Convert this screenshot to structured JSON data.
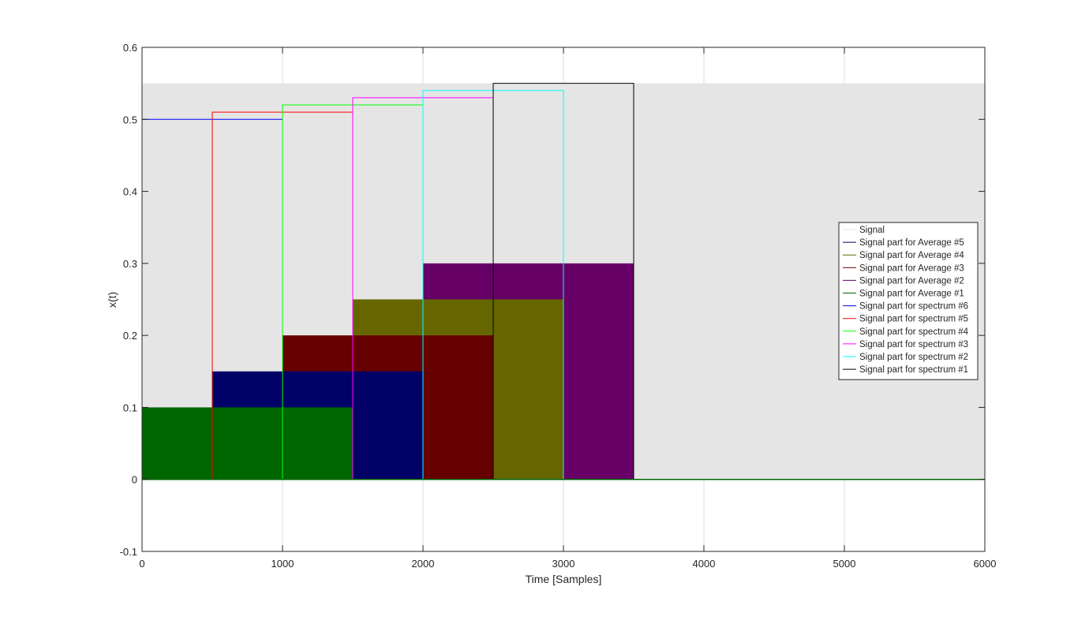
{
  "chart_data": {
    "type": "area",
    "title": "",
    "xlabel": "Time [Samples]",
    "ylabel": "x(t)",
    "xlim": [
      0,
      6000
    ],
    "ylim": [
      -0.1,
      0.6
    ],
    "grid": true,
    "x_ticks": [
      0,
      1000,
      2000,
      3000,
      4000,
      5000,
      6000
    ],
    "x_tick_labels": [
      "0",
      "1000",
      "2000",
      "3000",
      "4000",
      "5000",
      "6000"
    ],
    "y_ticks": [
      -0.1,
      0,
      0.1,
      0.2,
      0.3,
      0.4,
      0.5,
      0.6
    ],
    "y_tick_labels": [
      "-0.1",
      "0",
      "0.1",
      "0.2",
      "0.3",
      "0.4",
      "0.5",
      "0.6"
    ],
    "legend_position": "right",
    "signal": {
      "name": "Signal",
      "color": "#e5e5e5",
      "x": [
        0,
        6000
      ],
      "y": [
        0.55,
        0.55
      ]
    },
    "average_blocks": [
      {
        "name": "Signal part for Average #5",
        "color": "#000066",
        "x_range": [
          500,
          2000
        ],
        "height": 0.15
      },
      {
        "name": "Signal part for Average #4",
        "color": "#666600",
        "x_range": [
          1500,
          3000
        ],
        "height": 0.25
      },
      {
        "name": "Signal part for Average #3",
        "color": "#660000",
        "x_range": [
          1000,
          2500
        ],
        "height": 0.2
      },
      {
        "name": "Signal part for Average #2",
        "color": "#660066",
        "x_range": [
          2000,
          3500
        ],
        "height": 0.3
      },
      {
        "name": "Signal part for Average #1",
        "color": "#006600",
        "x_range": [
          0,
          1500
        ],
        "height": 0.1
      }
    ],
    "spectrum_windows": [
      {
        "name": "Signal part for spectrum #6",
        "color": "#0000ff",
        "x_range": [
          0,
          1000
        ],
        "height": 0.5
      },
      {
        "name": "Signal part for spectrum #5",
        "color": "#ff0000",
        "x_range": [
          500,
          1500
        ],
        "height": 0.51
      },
      {
        "name": "Signal part for spectrum #4",
        "color": "#00ff00",
        "x_range": [
          1000,
          2000
        ],
        "height": 0.52
      },
      {
        "name": "Signal part for spectrum #3",
        "color": "#ff00ff",
        "x_range": [
          1500,
          2500
        ],
        "height": 0.53
      },
      {
        "name": "Signal part for spectrum #2",
        "color": "#00ffff",
        "x_range": [
          2000,
          3000
        ],
        "height": 0.54
      },
      {
        "name": "Signal part for spectrum #1",
        "color": "#000000",
        "x_range": [
          2500,
          3500
        ],
        "height": 0.55
      }
    ],
    "legend_entries": [
      {
        "label": "Signal",
        "color": "#e5e5e5"
      },
      {
        "label": "Signal part for Average #5",
        "color": "#000066"
      },
      {
        "label": "Signal part for Average #4",
        "color": "#666600"
      },
      {
        "label": "Signal part for Average #3",
        "color": "#660000"
      },
      {
        "label": "Signal part for Average #2",
        "color": "#660066"
      },
      {
        "label": "Signal part for Average #1",
        "color": "#006600"
      },
      {
        "label": "Signal part for spectrum #6",
        "color": "#0000ff"
      },
      {
        "label": "Signal part for spectrum #5",
        "color": "#ff0000"
      },
      {
        "label": "Signal part for spectrum #4",
        "color": "#00ff00"
      },
      {
        "label": "Signal part for spectrum #3",
        "color": "#ff00ff"
      },
      {
        "label": "Signal part for spectrum #2",
        "color": "#00ffff"
      },
      {
        "label": "Signal part for spectrum #1",
        "color": "#000000"
      }
    ]
  }
}
